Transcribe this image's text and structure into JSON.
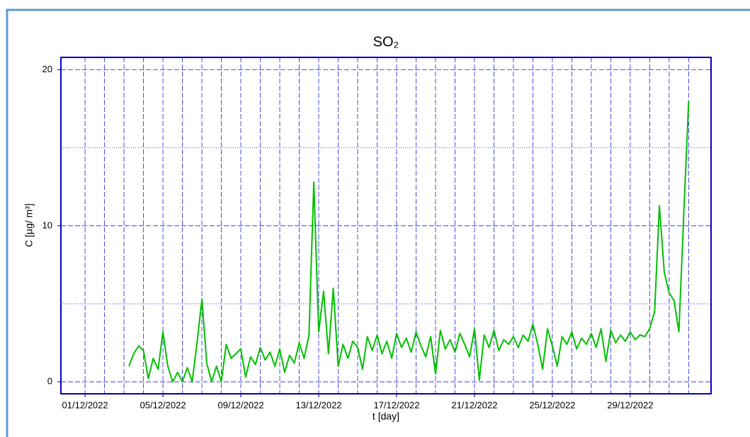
{
  "chart_data": {
    "type": "line",
    "title": "SO₂",
    "x_label": "t [day]",
    "y_label": "C [µg/ m³]",
    "color": "#00c000",
    "xlim": [
      -0.24,
      33.15
    ],
    "ylim": [
      -0.77,
      20.8
    ],
    "xticks": [
      {
        "value": 1,
        "label": "01/12/2022"
      },
      {
        "value": 5,
        "label": "05/12/2022"
      },
      {
        "value": 9,
        "label": "09/12/2022"
      },
      {
        "value": 13,
        "label": "13/12/2022"
      },
      {
        "value": 17,
        "label": "17/12/2022"
      },
      {
        "value": 21,
        "label": "21/12/2022"
      },
      {
        "value": 25,
        "label": "25/12/2022"
      },
      {
        "value": 29,
        "label": "29/12/2022"
      }
    ],
    "xminorticks": [
      2,
      3,
      4,
      6,
      7,
      8,
      10,
      11,
      12,
      14,
      15,
      16,
      18,
      19,
      20,
      22,
      23,
      24,
      26,
      27,
      28,
      30,
      31,
      32
    ],
    "yticks": [
      0,
      10,
      20
    ],
    "yminorticks": [
      5,
      15
    ],
    "grid": true,
    "x": [
      3.25,
      3.5,
      3.75,
      4.0,
      4.25,
      4.5,
      4.75,
      5.0,
      5.25,
      5.5,
      5.75,
      6.0,
      6.25,
      6.5,
      6.75,
      7.0,
      7.25,
      7.5,
      7.75,
      8.0,
      8.25,
      8.5,
      8.75,
      9.0,
      9.25,
      9.5,
      9.75,
      10.0,
      10.25,
      10.5,
      10.75,
      11.0,
      11.25,
      11.5,
      11.75,
      12.0,
      12.25,
      12.5,
      12.75,
      13.0,
      13.25,
      13.5,
      13.75,
      14.0,
      14.25,
      14.5,
      14.75,
      15.0,
      15.25,
      15.5,
      15.75,
      16.0,
      16.25,
      16.5,
      16.75,
      17.0,
      17.25,
      17.5,
      17.75,
      18.0,
      18.25,
      18.5,
      18.75,
      19.0,
      19.25,
      19.5,
      19.75,
      20.0,
      20.25,
      20.5,
      20.75,
      21.0,
      21.25,
      21.5,
      21.75,
      22.0,
      22.25,
      22.5,
      22.75,
      23.0,
      23.25,
      23.5,
      23.75,
      24.0,
      24.25,
      24.5,
      24.75,
      25.0,
      25.25,
      25.5,
      25.75,
      26.0,
      26.25,
      26.5,
      26.75,
      27.0,
      27.25,
      27.5,
      27.75,
      28.0,
      28.25,
      28.5,
      28.75,
      29.0,
      29.25,
      29.5,
      29.75,
      30.0,
      30.25,
      30.5,
      30.75,
      31.0,
      31.25,
      31.5,
      31.75,
      32.0
    ],
    "values": [
      1.0,
      1.8,
      2.3,
      2.0,
      0.2,
      1.5,
      0.8,
      3.2,
      1.0,
      0.0,
      0.6,
      0.0,
      0.9,
      0.0,
      2.5,
      5.3,
      1.2,
      0.0,
      1.0,
      0.0,
      2.4,
      1.5,
      1.8,
      2.1,
      0.3,
      1.6,
      1.1,
      2.2,
      1.4,
      1.9,
      1.0,
      2.1,
      0.6,
      1.7,
      1.2,
      2.5,
      1.5,
      3.0,
      12.8,
      3.2,
      5.8,
      1.8,
      6.0,
      1.0,
      2.4,
      1.5,
      2.6,
      2.2,
      0.8,
      2.9,
      2.0,
      3.0,
      1.8,
      2.6,
      1.5,
      3.1,
      2.2,
      2.8,
      1.9,
      3.2,
      2.3,
      1.6,
      2.9,
      0.5,
      3.3,
      2.1,
      2.7,
      1.9,
      3.1,
      2.4,
      1.6,
      3.4,
      0.1,
      3.0,
      2.2,
      3.3,
      2.0,
      2.7,
      2.4,
      2.9,
      2.2,
      3.0,
      2.6,
      3.7,
      2.4,
      0.8,
      3.4,
      2.3,
      1.0,
      2.9,
      2.4,
      3.2,
      2.1,
      2.8,
      2.4,
      3.1,
      2.2,
      3.4,
      1.3,
      3.3,
      2.5,
      3.0,
      2.6,
      3.2,
      2.7,
      3.0,
      2.9,
      3.4,
      4.5,
      11.3,
      7.0,
      5.7,
      5.2,
      3.2,
      10.8,
      18.0
    ]
  }
}
